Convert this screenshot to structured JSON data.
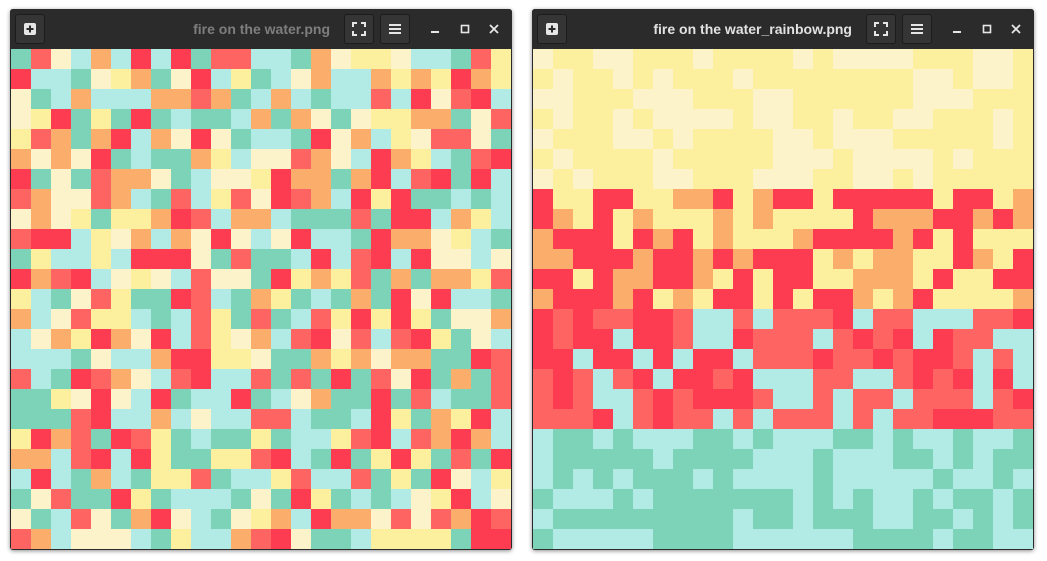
{
  "palette": {
    "teal": "#7dd3b7",
    "aqua": "#b2eae6",
    "cream": "#fdf3cb",
    "yellow": "#fcf09e",
    "orange": "#fbad6b",
    "coral": "#fe6462",
    "red": "#fd3c51"
  },
  "windows": [
    {
      "id": "left",
      "title": "fire on the water.png",
      "focused": false,
      "icons": [
        "add-icon",
        "fullscreen-icon",
        "hamburger-menu-icon",
        "minimize-icon",
        "maximize-icon",
        "close-icon"
      ]
    },
    {
      "id": "right",
      "title": "fire on the water_rainbow.png",
      "focused": true,
      "icons": [
        "add-icon",
        "fullscreen-icon",
        "hamburger-menu-icon",
        "minimize-icon",
        "maximize-icon",
        "close-icon"
      ]
    }
  ],
  "image_grid": {
    "columns": 25,
    "rows": 25
  }
}
